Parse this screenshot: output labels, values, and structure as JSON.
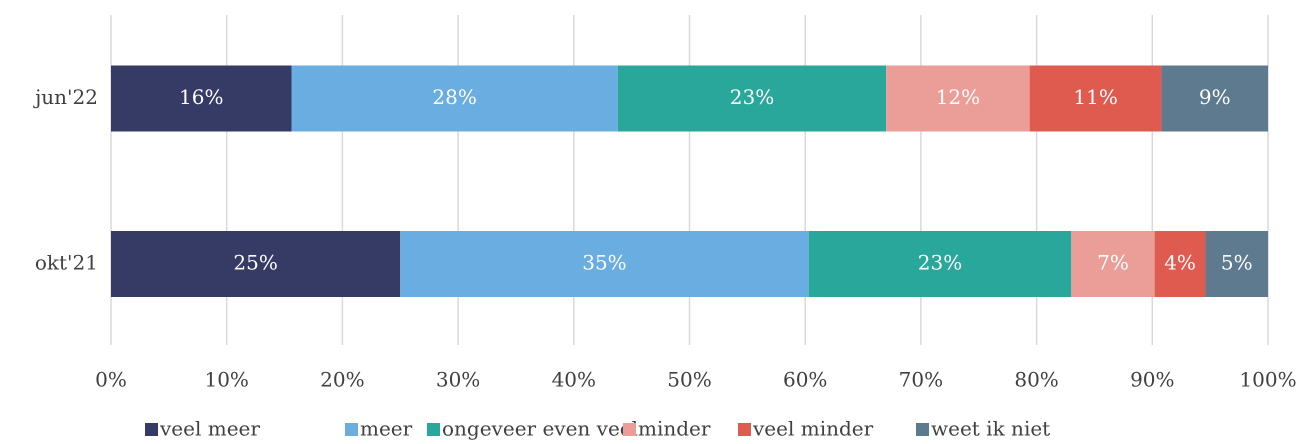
{
  "chart_data": {
    "type": "stacked_hbar",
    "categories": [
      "jun'22",
      "okt'21"
    ],
    "series": [
      {
        "name": "veel meer",
        "color": "#363b66",
        "values": [
          15.6,
          25.0
        ],
        "value_labels": [
          "16%",
          "25%"
        ]
      },
      {
        "name": "meer",
        "color": "#6aade0",
        "values": [
          28.2,
          35.3
        ],
        "value_labels": [
          "28%",
          "35%"
        ]
      },
      {
        "name": "ongeveer even veel",
        "color": "#2aa79b",
        "values": [
          23.2,
          22.7
        ],
        "value_labels": [
          "23%",
          "23%"
        ]
      },
      {
        "name": "minder",
        "color": "#ea9e97",
        "values": [
          12.4,
          7.2
        ],
        "value_labels": [
          "12%",
          "7%"
        ]
      },
      {
        "name": "veel minder",
        "color": "#df5b50",
        "values": [
          11.4,
          4.4
        ],
        "value_labels": [
          "11%",
          "4%"
        ]
      },
      {
        "name": "weet ik niet",
        "color": "#5e7a8e",
        "values": [
          9.2,
          5.4
        ],
        "value_labels": [
          "9%",
          "5%"
        ]
      }
    ],
    "xlim": [
      0,
      100
    ],
    "xticks": [
      {
        "value": 0,
        "label": "0%"
      },
      {
        "value": 10,
        "label": "10%"
      },
      {
        "value": 20,
        "label": "20%"
      },
      {
        "value": 30,
        "label": "30%"
      },
      {
        "value": 40,
        "label": "40%"
      },
      {
        "value": 50,
        "label": "50%"
      },
      {
        "value": 60,
        "label": "60%"
      },
      {
        "value": 70,
        "label": "70%"
      },
      {
        "value": 80,
        "label": "80%"
      },
      {
        "value": 90,
        "label": "90%"
      },
      {
        "value": 100,
        "label": "100%"
      }
    ],
    "grid": true,
    "legend": "bottom"
  }
}
